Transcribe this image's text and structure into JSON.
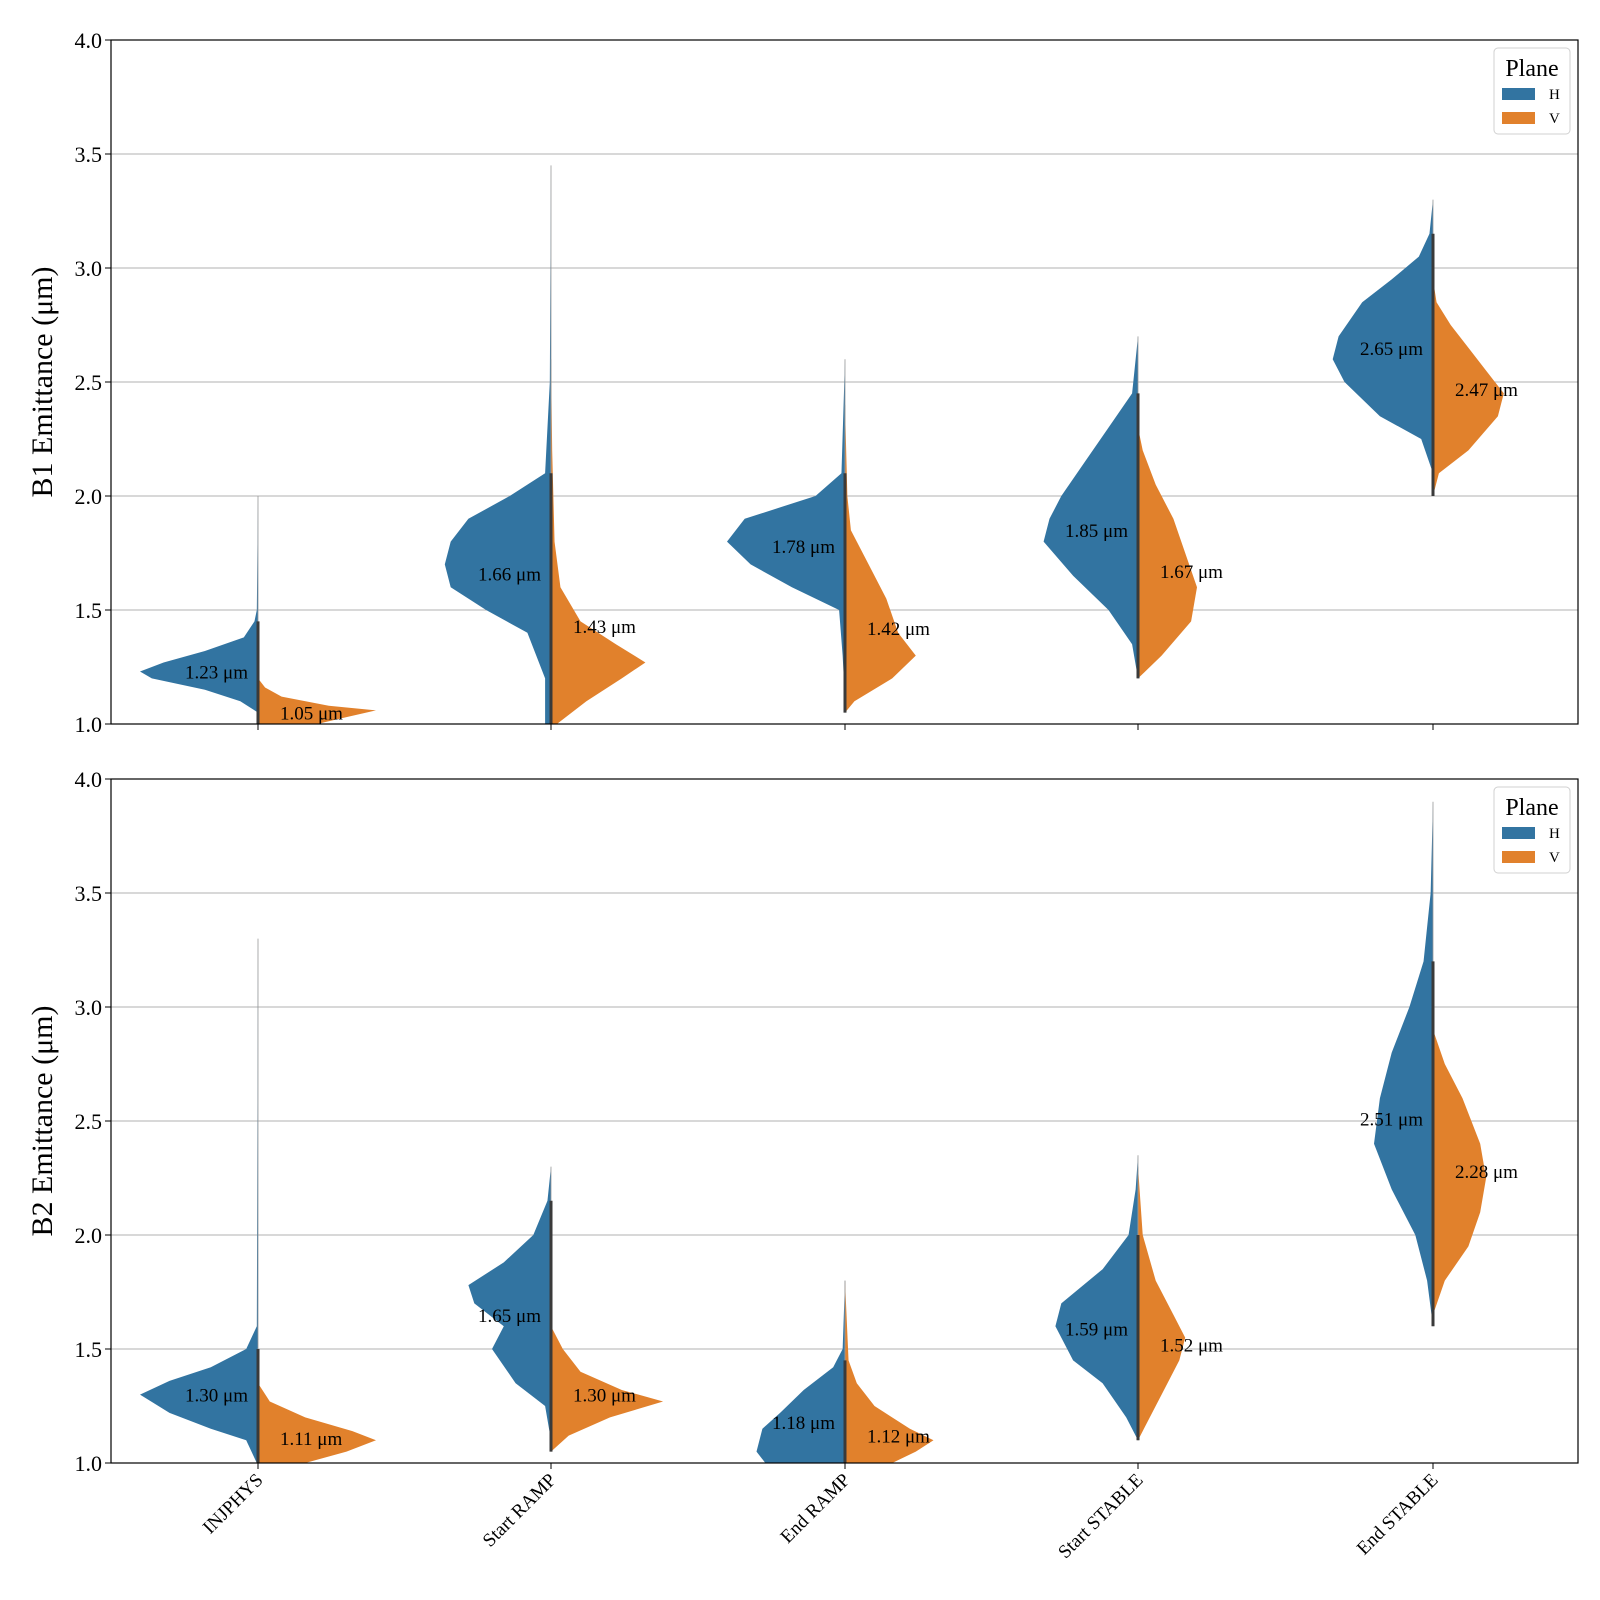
{
  "chart_data": [
    {
      "type": "violin",
      "panel": "B1",
      "ylabel": "B1 Emittance (μm)",
      "xlabel": "",
      "ylim": [
        1.0,
        4.0
      ],
      "yticks": [
        "1.0",
        "1.5",
        "2.0",
        "2.5",
        "3.0",
        "3.5",
        "4.0"
      ],
      "ytick_values": [
        1.0,
        1.5,
        2.0,
        2.5,
        3.0,
        3.5,
        4.0
      ],
      "grid": true,
      "legend": {
        "title": "Plane",
        "position": "top-right",
        "entries": [
          "H",
          "V"
        ]
      },
      "categories": [
        "INJPHYS",
        "Start RAMP",
        "End RAMP",
        "Start STABLE",
        "End STABLE"
      ],
      "series": [
        {
          "name": "H",
          "color": "#3274a1",
          "medians": [
            1.23,
            1.66,
            1.78,
            1.85,
            2.65
          ],
          "median_labels": [
            "1.23 μm",
            "1.66 μm",
            "1.78 μm",
            "1.85 μm",
            "2.65 μm"
          ],
          "ranges": [
            [
              1.05,
              2.0
            ],
            [
              0.95,
              3.45
            ],
            [
              1.1,
              2.6
            ],
            [
              1.2,
              2.7
            ],
            [
              2.1,
              3.3
            ]
          ],
          "profiles": [
            [
              [
                1.05,
                0
              ],
              [
                1.1,
                0.15
              ],
              [
                1.15,
                0.45
              ],
              [
                1.2,
                0.9
              ],
              [
                1.23,
                1.0
              ],
              [
                1.27,
                0.8
              ],
              [
                1.32,
                0.45
              ],
              [
                1.38,
                0.12
              ],
              [
                1.45,
                0.03
              ],
              [
                1.5,
                0.01
              ],
              [
                2.0,
                0
              ]
            ],
            [
              [
                0.95,
                0
              ],
              [
                1.0,
                0.05
              ],
              [
                1.2,
                0.05
              ],
              [
                1.4,
                0.2
              ],
              [
                1.5,
                0.55
              ],
              [
                1.6,
                0.85
              ],
              [
                1.7,
                0.9
              ],
              [
                1.8,
                0.85
              ],
              [
                1.9,
                0.7
              ],
              [
                2.0,
                0.35
              ],
              [
                2.1,
                0.05
              ],
              [
                2.5,
                0.01
              ],
              [
                3.45,
                0
              ]
            ],
            [
              [
                1.1,
                0
              ],
              [
                1.3,
                0.02
              ],
              [
                1.5,
                0.05
              ],
              [
                1.6,
                0.45
              ],
              [
                1.7,
                0.8
              ],
              [
                1.8,
                1.0
              ],
              [
                1.9,
                0.85
              ],
              [
                1.95,
                0.55
              ],
              [
                2.0,
                0.25
              ],
              [
                2.1,
                0.03
              ],
              [
                2.6,
                0
              ]
            ],
            [
              [
                1.2,
                0
              ],
              [
                1.35,
                0.05
              ],
              [
                1.5,
                0.25
              ],
              [
                1.65,
                0.55
              ],
              [
                1.8,
                0.8
              ],
              [
                1.9,
                0.75
              ],
              [
                2.0,
                0.65
              ],
              [
                2.15,
                0.45
              ],
              [
                2.3,
                0.25
              ],
              [
                2.45,
                0.05
              ],
              [
                2.7,
                0
              ]
            ],
            [
              [
                2.1,
                0
              ],
              [
                2.25,
                0.1
              ],
              [
                2.35,
                0.45
              ],
              [
                2.5,
                0.75
              ],
              [
                2.6,
                0.85
              ],
              [
                2.7,
                0.8
              ],
              [
                2.85,
                0.6
              ],
              [
                2.95,
                0.35
              ],
              [
                3.05,
                0.12
              ],
              [
                3.15,
                0.03
              ],
              [
                3.3,
                0
              ]
            ]
          ]
        },
        {
          "name": "V",
          "color": "#e1812c",
          "medians": [
            1.05,
            1.43,
            1.42,
            1.67,
            2.47
          ],
          "median_labels": [
            "1.05 μm",
            "1.43 μm",
            "1.42 μm",
            "1.67 μm",
            "2.47 μm"
          ],
          "ranges": [
            [
              1.0,
              1.2
            ],
            [
              1.0,
              2.6
            ],
            [
              1.05,
              2.4
            ],
            [
              1.2,
              2.3
            ],
            [
              2.0,
              2.95
            ]
          ],
          "profiles": [
            [
              [
                1.0,
                0.5
              ],
              [
                1.03,
                0.75
              ],
              [
                1.06,
                1.0
              ],
              [
                1.08,
                0.6
              ],
              [
                1.12,
                0.2
              ],
              [
                1.16,
                0.06
              ],
              [
                1.2,
                0
              ]
            ],
            [
              [
                1.0,
                0.05
              ],
              [
                1.1,
                0.3
              ],
              [
                1.2,
                0.6
              ],
              [
                1.27,
                0.8
              ],
              [
                1.35,
                0.55
              ],
              [
                1.45,
                0.25
              ],
              [
                1.6,
                0.08
              ],
              [
                1.8,
                0.03
              ],
              [
                2.2,
                0.01
              ],
              [
                2.6,
                0
              ]
            ],
            [
              [
                1.05,
                0
              ],
              [
                1.1,
                0.08
              ],
              [
                1.2,
                0.4
              ],
              [
                1.3,
                0.6
              ],
              [
                1.4,
                0.45
              ],
              [
                1.55,
                0.35
              ],
              [
                1.7,
                0.2
              ],
              [
                1.85,
                0.05
              ],
              [
                2.0,
                0.02
              ],
              [
                2.4,
                0
              ]
            ],
            [
              [
                1.2,
                0
              ],
              [
                1.3,
                0.2
              ],
              [
                1.45,
                0.45
              ],
              [
                1.6,
                0.5
              ],
              [
                1.75,
                0.4
              ],
              [
                1.9,
                0.3
              ],
              [
                2.05,
                0.15
              ],
              [
                2.2,
                0.04
              ],
              [
                2.3,
                0
              ]
            ],
            [
              [
                2.0,
                0
              ],
              [
                2.1,
                0.05
              ],
              [
                2.2,
                0.3
              ],
              [
                2.35,
                0.55
              ],
              [
                2.45,
                0.6
              ],
              [
                2.55,
                0.45
              ],
              [
                2.65,
                0.3
              ],
              [
                2.75,
                0.15
              ],
              [
                2.85,
                0.03
              ],
              [
                2.95,
                0
              ]
            ]
          ]
        }
      ]
    },
    {
      "type": "violin",
      "panel": "B2",
      "ylabel": "B2 Emittance (μm)",
      "xlabel": "",
      "ylim": [
        1.0,
        4.0
      ],
      "yticks": [
        "1.0",
        "1.5",
        "2.0",
        "2.5",
        "3.0",
        "3.5",
        "4.0"
      ],
      "ytick_values": [
        1.0,
        1.5,
        2.0,
        2.5,
        3.0,
        3.5,
        4.0
      ],
      "grid": true,
      "legend": {
        "title": "Plane",
        "position": "top-right",
        "entries": [
          "H",
          "V"
        ]
      },
      "categories": [
        "INJPHYS",
        "Start RAMP",
        "End RAMP",
        "Start STABLE",
        "End STABLE"
      ],
      "series": [
        {
          "name": "H",
          "color": "#3274a1",
          "medians": [
            1.3,
            1.65,
            1.18,
            1.59,
            2.51
          ],
          "median_labels": [
            "1.30 μm",
            "1.65 μm",
            "1.18 μm",
            "1.59 μm",
            "2.51 μm"
          ],
          "ranges": [
            [
              1.0,
              3.3
            ],
            [
              1.1,
              2.3
            ],
            [
              0.95,
              1.8
            ],
            [
              1.1,
              2.35
            ],
            [
              1.6,
              3.9
            ]
          ],
          "profiles": [
            [
              [
                1.0,
                0.01
              ],
              [
                1.1,
                0.1
              ],
              [
                1.15,
                0.4
              ],
              [
                1.22,
                0.75
              ],
              [
                1.3,
                1.0
              ],
              [
                1.36,
                0.75
              ],
              [
                1.42,
                0.4
              ],
              [
                1.5,
                0.1
              ],
              [
                1.6,
                0.01
              ],
              [
                3.3,
                0
              ]
            ],
            [
              [
                1.1,
                0
              ],
              [
                1.25,
                0.05
              ],
              [
                1.35,
                0.3
              ],
              [
                1.5,
                0.5
              ],
              [
                1.6,
                0.4
              ],
              [
                1.7,
                0.65
              ],
              [
                1.78,
                0.7
              ],
              [
                1.88,
                0.4
              ],
              [
                2.0,
                0.15
              ],
              [
                2.15,
                0.03
              ],
              [
                2.3,
                0
              ]
            ],
            [
              [
                0.95,
                0.6
              ],
              [
                1.05,
                0.75
              ],
              [
                1.15,
                0.7
              ],
              [
                1.22,
                0.55
              ],
              [
                1.32,
                0.35
              ],
              [
                1.42,
                0.1
              ],
              [
                1.5,
                0.02
              ],
              [
                1.8,
                0
              ]
            ],
            [
              [
                1.1,
                0
              ],
              [
                1.2,
                0.1
              ],
              [
                1.35,
                0.3
              ],
              [
                1.45,
                0.55
              ],
              [
                1.6,
                0.7
              ],
              [
                1.7,
                0.65
              ],
              [
                1.85,
                0.3
              ],
              [
                2.0,
                0.08
              ],
              [
                2.2,
                0.02
              ],
              [
                2.35,
                0
              ]
            ],
            [
              [
                1.6,
                0
              ],
              [
                1.8,
                0.05
              ],
              [
                2.0,
                0.15
              ],
              [
                2.2,
                0.35
              ],
              [
                2.4,
                0.5
              ],
              [
                2.6,
                0.45
              ],
              [
                2.8,
                0.35
              ],
              [
                3.0,
                0.2
              ],
              [
                3.2,
                0.08
              ],
              [
                3.5,
                0.02
              ],
              [
                3.9,
                0
              ]
            ]
          ]
        },
        {
          "name": "V",
          "color": "#e1812c",
          "medians": [
            1.11,
            1.3,
            1.12,
            1.52,
            2.28
          ],
          "median_labels": [
            "1.11 μm",
            "1.30 μm",
            "1.12 μm",
            "1.52 μm",
            "2.28 μm"
          ],
          "ranges": [
            [
              1.0,
              1.35
            ],
            [
              1.05,
              1.6
            ],
            [
              1.0,
              1.8
            ],
            [
              1.1,
              2.3
            ],
            [
              1.65,
              2.9
            ]
          ],
          "profiles": [
            [
              [
                1.0,
                0.4
              ],
              [
                1.05,
                0.75
              ],
              [
                1.1,
                1.0
              ],
              [
                1.14,
                0.8
              ],
              [
                1.2,
                0.4
              ],
              [
                1.27,
                0.1
              ],
              [
                1.35,
                0
              ]
            ],
            [
              [
                1.05,
                0
              ],
              [
                1.12,
                0.15
              ],
              [
                1.2,
                0.5
              ],
              [
                1.27,
                0.95
              ],
              [
                1.32,
                0.6
              ],
              [
                1.4,
                0.25
              ],
              [
                1.5,
                0.1
              ],
              [
                1.6,
                0
              ]
            ],
            [
              [
                1.0,
                0.4
              ],
              [
                1.05,
                0.6
              ],
              [
                1.1,
                0.75
              ],
              [
                1.15,
                0.55
              ],
              [
                1.25,
                0.25
              ],
              [
                1.35,
                0.1
              ],
              [
                1.45,
                0.03
              ],
              [
                1.8,
                0
              ]
            ],
            [
              [
                1.1,
                0
              ],
              [
                1.2,
                0.1
              ],
              [
                1.3,
                0.2
              ],
              [
                1.45,
                0.35
              ],
              [
                1.55,
                0.4
              ],
              [
                1.65,
                0.3
              ],
              [
                1.8,
                0.15
              ],
              [
                2.0,
                0.04
              ],
              [
                2.3,
                0
              ]
            ],
            [
              [
                1.65,
                0
              ],
              [
                1.8,
                0.1
              ],
              [
                1.95,
                0.3
              ],
              [
                2.1,
                0.4
              ],
              [
                2.25,
                0.45
              ],
              [
                2.4,
                0.4
              ],
              [
                2.6,
                0.25
              ],
              [
                2.75,
                0.1
              ],
              [
                2.9,
                0
              ]
            ]
          ]
        }
      ]
    }
  ]
}
